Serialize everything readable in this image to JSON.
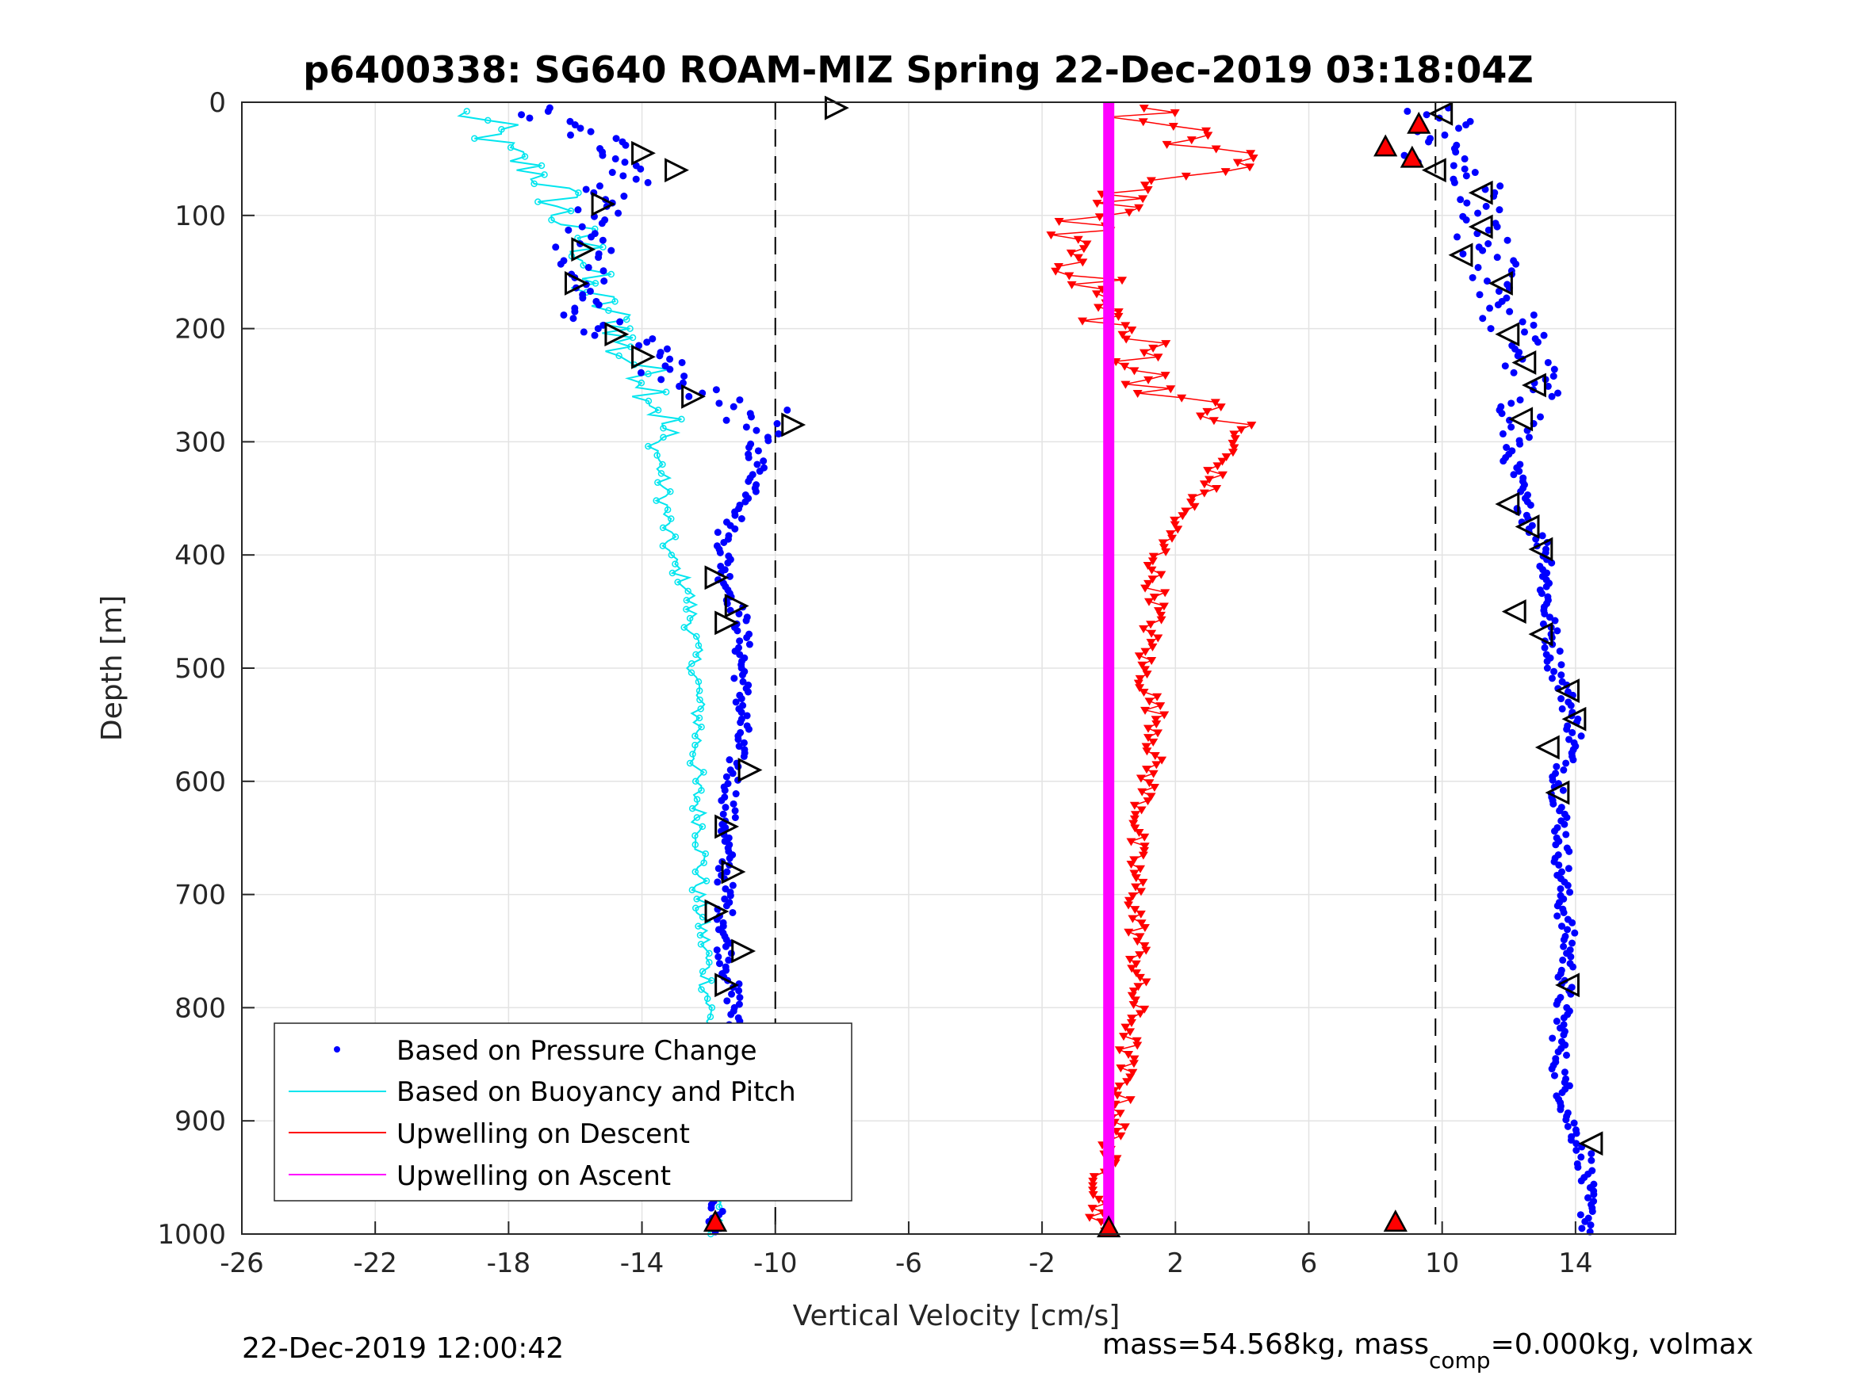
{
  "chart_data": {
    "type": "scatter",
    "title": "p6400338: SG640 ROAM-MIZ Spring 22-Dec-2019 03:18:04Z",
    "xlabel": "Vertical Velocity [cm/s]",
    "ylabel": "Depth [m]",
    "xlim": [
      -26,
      17
    ],
    "ylim": [
      0,
      1000
    ],
    "y_reversed": true,
    "xticks": [
      "-26",
      "-22",
      "-18",
      "-14",
      "-10",
      "-6",
      "-2",
      "2",
      "6",
      "10",
      "14"
    ],
    "xtick_values": [
      -26,
      -22,
      -18,
      -14,
      -10,
      -6,
      -2,
      2,
      6,
      10,
      14
    ],
    "yticks": [
      "0",
      "100",
      "200",
      "300",
      "400",
      "500",
      "600",
      "700",
      "800",
      "900",
      "1000"
    ],
    "ytick_values": [
      0,
      100,
      200,
      300,
      400,
      500,
      600,
      700,
      800,
      900,
      1000
    ],
    "grid": true,
    "legend_position": "bottom-left",
    "reference_lines_x": [
      -10,
      9.8
    ],
    "series": [
      {
        "name": "Based on Pressure Change",
        "color": "#0000ff",
        "marker": "dot",
        "profiles": [
          {
            "label": "dive",
            "depth": [
              5,
              15,
              30,
              45,
              60,
              80,
              100,
              130,
              160,
              190,
              220,
              250,
              270,
              290,
              320,
              350,
              380,
              420,
              460,
              500,
              550,
              600,
              650,
              700,
              750,
              800,
              850,
              900,
              950,
              990
            ],
            "velocity": [
              -17.5,
              -17,
              -15.5,
              -14.5,
              -14,
              -15,
              -15.3,
              -15.8,
              -16,
              -15.5,
              -14,
              -13,
              -10.5,
              -10.8,
              -10.5,
              -10.7,
              -11.5,
              -11.5,
              -11,
              -11,
              -11,
              -11.3,
              -11.5,
              -11.5,
              -11.5,
              -11.2,
              -11.5,
              -11.5,
              -11.8,
              -11.8
            ]
          },
          {
            "label": "climb",
            "depth": [
              5,
              20,
              40,
              60,
              80,
              100,
              130,
              160,
              190,
              220,
              250,
              280,
              310,
              340,
              370,
              400,
              430,
              460,
              500,
              530,
              560,
              600,
              650,
              700,
              750,
              800,
              850,
              900,
              930,
              960,
              990
            ],
            "velocity": [
              9.8,
              10,
              9.5,
              10.2,
              11.2,
              10.8,
              11.2,
              11.8,
              12,
              12.5,
              12.7,
              12.4,
              12,
              12.3,
              12.6,
              13.2,
              13.1,
              13.2,
              13.4,
              13.8,
              14,
              13.5,
              13.6,
              13.6,
              13.8,
              13.6,
              13.5,
              13.8,
              14.3,
              14.3,
              14.4
            ]
          }
        ]
      },
      {
        "name": "Based on Buoyancy and Pitch",
        "color": "#00e5ee",
        "marker": "circle-line",
        "depth": [
          8,
          20,
          35,
          50,
          65,
          80,
          100,
          120,
          140,
          160,
          180,
          200,
          220,
          240,
          260,
          280,
          300,
          330,
          360,
          400,
          430,
          460,
          500,
          550,
          600,
          650,
          700,
          750,
          800,
          850,
          900,
          950,
          1000
        ],
        "velocity": [
          -19.5,
          -18.5,
          -18.5,
          -17.8,
          -17,
          -16.5,
          -16.5,
          -15.8,
          -15.5,
          -15.8,
          -15.2,
          -14.5,
          -14.7,
          -13.7,
          -13.5,
          -13.3,
          -13.6,
          -13.4,
          -13.3,
          -13.2,
          -12.6,
          -12.5,
          -12.4,
          -12.3,
          -12.4,
          -12.2,
          -12.3,
          -12.1,
          -12,
          -11.9,
          -11.8,
          -11.8,
          -11.8
        ]
      },
      {
        "name": "Upwelling on Descent",
        "color": "#ff0000",
        "marker": "triangle-down",
        "depth": [
          5,
          15,
          25,
          35,
          45,
          55,
          65,
          75,
          85,
          100,
          120,
          140,
          160,
          180,
          200,
          220,
          240,
          260,
          280,
          300,
          320,
          340,
          360,
          380,
          400,
          420,
          440,
          460,
          480,
          500,
          550,
          600,
          650,
          700,
          750,
          800,
          850,
          900,
          950,
          990
        ],
        "velocity": [
          1.5,
          0.5,
          2.5,
          1.5,
          4.5,
          3.5,
          2.5,
          1,
          0.5,
          -0.5,
          -1,
          -0.8,
          -0.5,
          -0.3,
          0.3,
          1.2,
          1,
          2,
          3.5,
          3.8,
          3.3,
          3,
          2.3,
          1.8,
          1.5,
          1.3,
          1.5,
          1.3,
          1.2,
          1,
          1.5,
          1.2,
          0.8,
          0.8,
          0.9,
          0.8,
          0.5,
          0.3,
          -0.2,
          -0.3
        ]
      },
      {
        "name": "Upwelling on Ascent",
        "color": "#ff00ff",
        "marker": "line",
        "depth": [
          0,
          1000
        ],
        "velocity": [
          0,
          0
        ]
      }
    ],
    "pitch_markers_dive": [
      {
        "depth": 5,
        "velocity": -8.2
      },
      {
        "depth": 45,
        "velocity": -14
      },
      {
        "depth": 60,
        "velocity": -13
      },
      {
        "depth": 90,
        "velocity": -15.2
      },
      {
        "depth": 130,
        "velocity": -15.8
      },
      {
        "depth": 160,
        "velocity": -16
      },
      {
        "depth": 205,
        "velocity": -14.8
      },
      {
        "depth": 225,
        "velocity": -14
      },
      {
        "depth": 260,
        "velocity": -12.5
      },
      {
        "depth": 285,
        "velocity": -9.5
      },
      {
        "depth": 420,
        "velocity": -11.8
      },
      {
        "depth": 445,
        "velocity": -11.2
      },
      {
        "depth": 460,
        "velocity": -11.5
      },
      {
        "depth": 590,
        "velocity": -10.8
      },
      {
        "depth": 640,
        "velocity": -11.5
      },
      {
        "depth": 680,
        "velocity": -11.3
      },
      {
        "depth": 715,
        "velocity": -11.8
      },
      {
        "depth": 750,
        "velocity": -11
      },
      {
        "depth": 780,
        "velocity": -11.5
      },
      {
        "depth": 900,
        "velocity": -11
      }
    ],
    "pitch_markers_climb": [
      {
        "depth": 10,
        "velocity": 10
      },
      {
        "depth": 60,
        "velocity": 9.8
      },
      {
        "depth": 80,
        "velocity": 11.2
      },
      {
        "depth": 110,
        "velocity": 11.2
      },
      {
        "depth": 135,
        "velocity": 10.6
      },
      {
        "depth": 160,
        "velocity": 11.8
      },
      {
        "depth": 205,
        "velocity": 12
      },
      {
        "depth": 230,
        "velocity": 12.5
      },
      {
        "depth": 250,
        "velocity": 12.8
      },
      {
        "depth": 280,
        "velocity": 12.4
      },
      {
        "depth": 355,
        "velocity": 12
      },
      {
        "depth": 375,
        "velocity": 12.6
      },
      {
        "depth": 395,
        "velocity": 13
      },
      {
        "depth": 450,
        "velocity": 12.2
      },
      {
        "depth": 470,
        "velocity": 13
      },
      {
        "depth": 520,
        "velocity": 13.8
      },
      {
        "depth": 545,
        "velocity": 14
      },
      {
        "depth": 570,
        "velocity": 13.2
      },
      {
        "depth": 610,
        "velocity": 13.5
      },
      {
        "depth": 780,
        "velocity": 13.8
      },
      {
        "depth": 920,
        "velocity": 14.5
      }
    ],
    "apogee_markers": [
      {
        "depth": 20,
        "velocity": 9.3
      },
      {
        "depth": 40,
        "velocity": 8.3
      },
      {
        "depth": 50,
        "velocity": 9.1
      },
      {
        "depth": 990,
        "velocity": -11.8
      },
      {
        "depth": 990,
        "velocity": 8.6
      },
      {
        "depth": 995,
        "velocity": 0
      }
    ]
  },
  "footer": {
    "timestamp": "22-Dec-2019 12:00:42",
    "mass_text": "mass=54.568kg, mass",
    "mass_sub": "comp",
    "mass_tail": "=0.000kg, volmax"
  }
}
